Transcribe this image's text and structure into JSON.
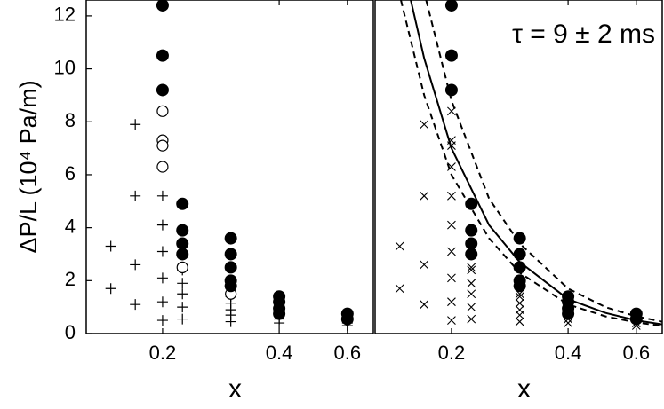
{
  "chart_data": [
    {
      "type": "scatter",
      "xlabel": "x",
      "ylabel": "ΔP/L (10⁴ Pa/m)",
      "xscale": "log",
      "xlim": [
        0.127,
        0.7
      ],
      "ylim": [
        0,
        12.6
      ],
      "xticks": [
        0.2,
        0.4,
        0.6
      ],
      "yticks": [
        0,
        2,
        4,
        6,
        8,
        10,
        12
      ],
      "series": [
        {
          "marker": "plus",
          "color": "#000000",
          "x": [
            0.147,
            0.147,
            0.17,
            0.17,
            0.17,
            0.17,
            0.2,
            0.2,
            0.2,
            0.2,
            0.2,
            0.2,
            0.225,
            0.225,
            0.225,
            0.225,
            0.225,
            0.3,
            0.3,
            0.3,
            0.3,
            0.3,
            0.4,
            0.4,
            0.4,
            0.6,
            0.6
          ],
          "values": [
            3.3,
            1.7,
            7.9,
            5.2,
            2.6,
            1.1,
            5.2,
            4.1,
            3.1,
            2.1,
            1.2,
            0.5,
            2.4,
            1.9,
            1.5,
            1.0,
            0.55,
            1.4,
            1.15,
            0.9,
            0.7,
            0.45,
            0.7,
            0.55,
            0.4,
            0.4,
            0.3
          ]
        },
        {
          "marker": "circle-open",
          "color": "#000000",
          "x": [
            0.2,
            0.2,
            0.2,
            0.2,
            0.225,
            0.225,
            0.3
          ],
          "values": [
            8.4,
            7.3,
            7.1,
            6.3,
            3.0,
            2.5,
            1.5
          ]
        },
        {
          "marker": "circle",
          "color": "#000000",
          "x": [
            0.2,
            0.2,
            0.2,
            0.225,
            0.225,
            0.225,
            0.225,
            0.3,
            0.3,
            0.3,
            0.3,
            0.3,
            0.4,
            0.4,
            0.4,
            0.4,
            0.6,
            0.6
          ],
          "values": [
            12.4,
            10.5,
            9.2,
            4.9,
            3.9,
            3.4,
            3.0,
            3.6,
            3.0,
            2.5,
            2.0,
            1.8,
            1.4,
            1.2,
            0.95,
            0.75,
            0.75,
            0.55
          ]
        }
      ]
    },
    {
      "type": "scatter",
      "xlabel": "x",
      "annotation": "τ = 9 ± 2 ms",
      "xscale": "log",
      "xlim": [
        0.127,
        0.7
      ],
      "ylim": [
        0,
        12.6
      ],
      "xticks": [
        0.2,
        0.4,
        0.6
      ],
      "series": [
        {
          "marker": "x",
          "color": "#000000",
          "x": [
            0.147,
            0.147,
            0.17,
            0.17,
            0.17,
            0.17,
            0.2,
            0.2,
            0.2,
            0.2,
            0.2,
            0.2,
            0.225,
            0.225,
            0.225,
            0.225,
            0.225,
            0.3,
            0.3,
            0.3,
            0.3,
            0.3,
            0.4,
            0.4,
            0.4,
            0.6,
            0.6,
            0.2,
            0.2,
            0.2,
            0.2,
            0.225,
            0.225,
            0.3
          ],
          "values": [
            3.3,
            1.7,
            7.9,
            5.2,
            2.6,
            1.1,
            5.2,
            4.1,
            3.1,
            2.1,
            1.2,
            0.5,
            2.4,
            1.9,
            1.5,
            1.0,
            0.55,
            1.4,
            1.15,
            0.9,
            0.7,
            0.45,
            0.7,
            0.55,
            0.4,
            0.4,
            0.3,
            8.4,
            7.3,
            7.1,
            6.3,
            3.0,
            2.5,
            1.5
          ]
        },
        {
          "marker": "circle",
          "color": "#000000",
          "x": [
            0.2,
            0.2,
            0.2,
            0.225,
            0.225,
            0.225,
            0.225,
            0.3,
            0.3,
            0.3,
            0.3,
            0.3,
            0.4,
            0.4,
            0.4,
            0.4,
            0.6,
            0.6
          ],
          "values": [
            12.4,
            10.5,
            9.2,
            4.9,
            3.9,
            3.4,
            3.0,
            3.6,
            3.0,
            2.5,
            2.0,
            1.8,
            1.4,
            1.2,
            0.95,
            0.75,
            0.75,
            0.55
          ]
        },
        {
          "line": "solid",
          "color": "#000000",
          "x": [
            0.157,
            0.17,
            0.2,
            0.25,
            0.3,
            0.4,
            0.5,
            0.6,
            0.7
          ],
          "values": [
            12.6,
            10.4,
            7.0,
            4.1,
            2.7,
            1.3,
            0.78,
            0.5,
            0.35
          ]
        },
        {
          "line": "dashed",
          "color": "#000000",
          "x": [
            0.172,
            0.2,
            0.25,
            0.3,
            0.4,
            0.5,
            0.6,
            0.7
          ],
          "values": [
            12.6,
            8.8,
            5.1,
            3.4,
            1.7,
            1.0,
            0.65,
            0.45
          ]
        },
        {
          "line": "dashed",
          "color": "#000000",
          "x": [
            0.148,
            0.17,
            0.2,
            0.25,
            0.3,
            0.4,
            0.5,
            0.6,
            0.7
          ],
          "values": [
            12.6,
            9.0,
            6.0,
            3.6,
            2.3,
            1.1,
            0.65,
            0.42,
            0.29
          ]
        }
      ]
    }
  ]
}
